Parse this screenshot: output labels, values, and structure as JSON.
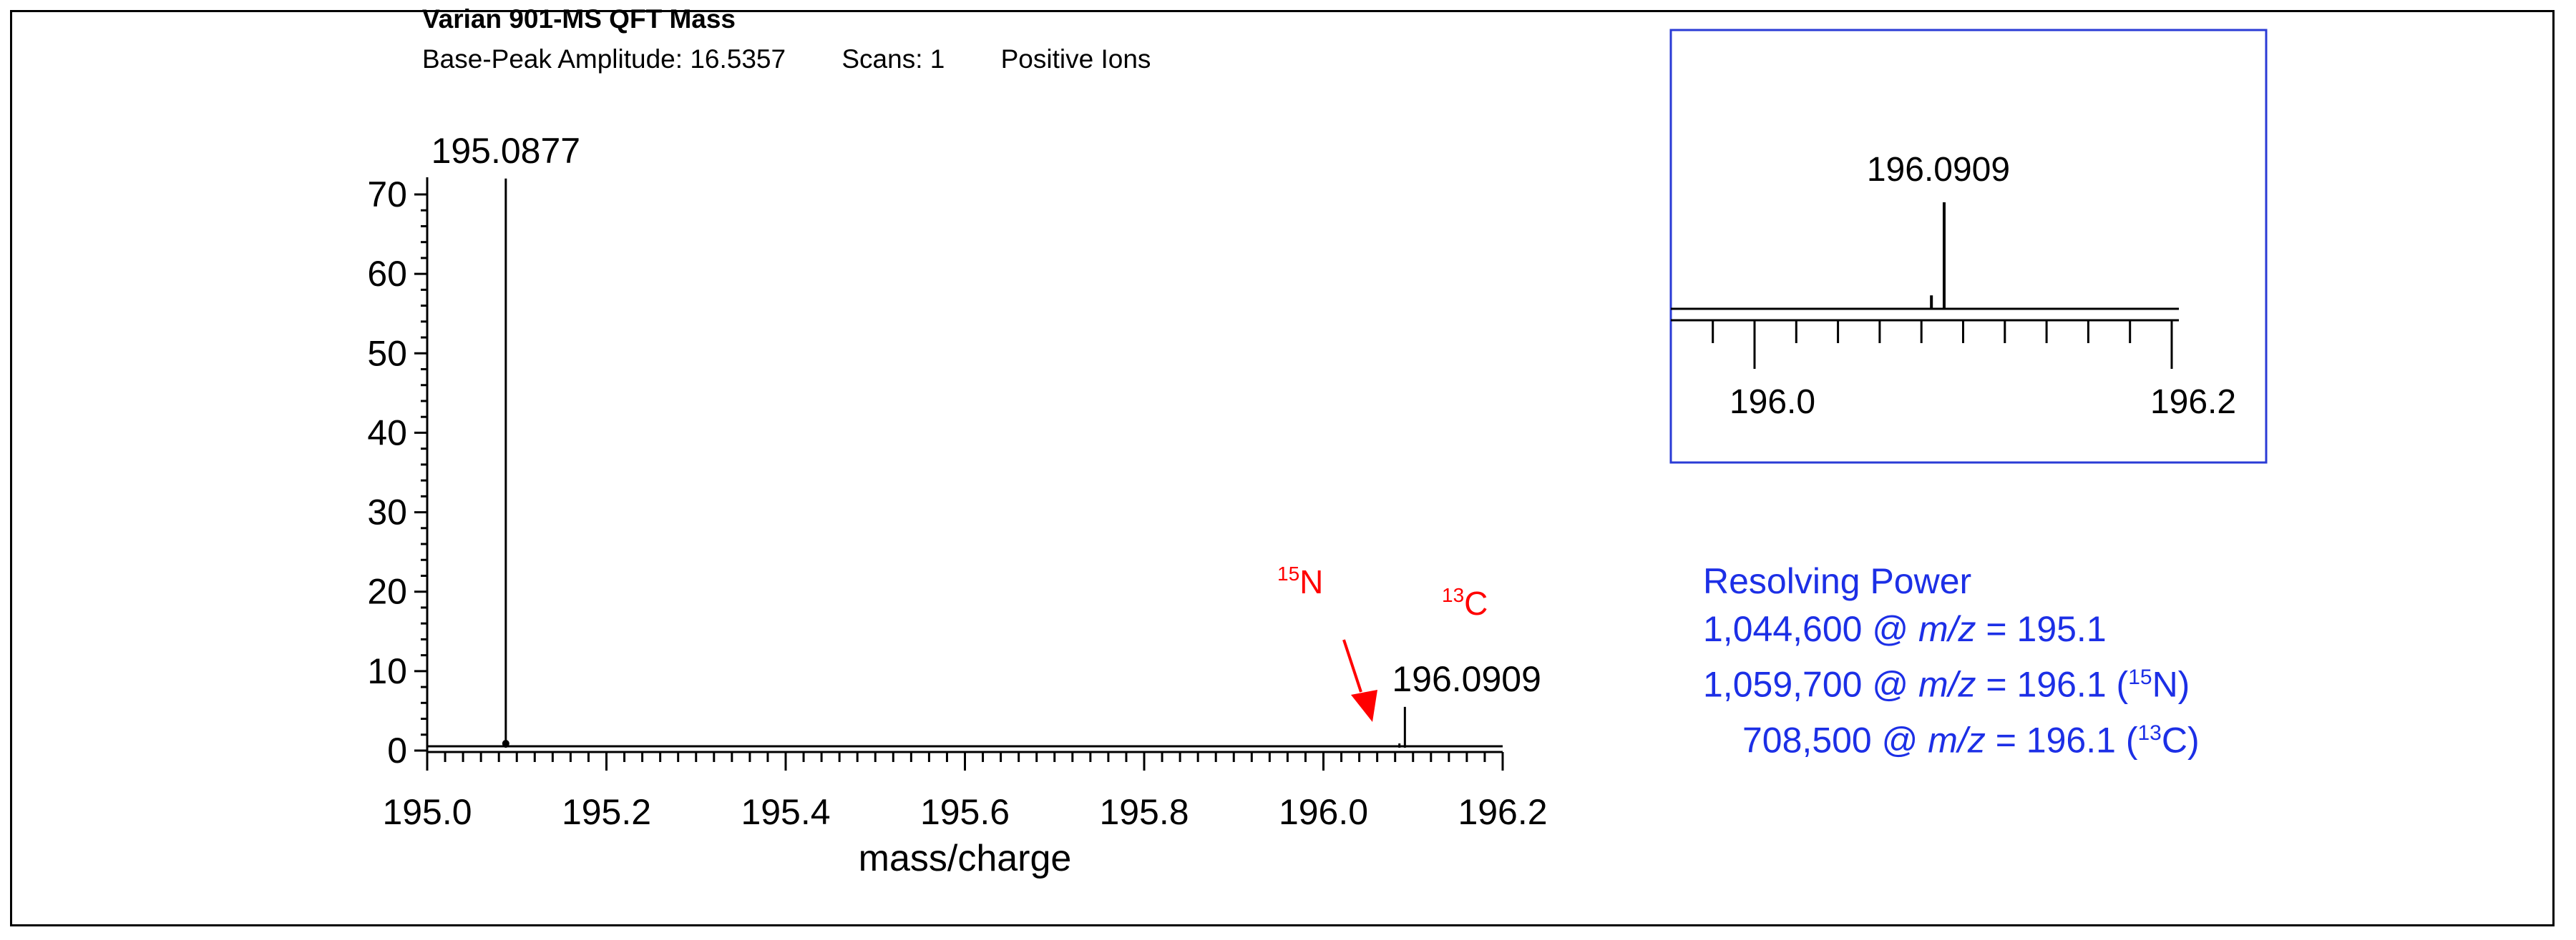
{
  "header": {
    "title": "Varian 901-MS QFT Mass",
    "amplitude": "Base-Peak Amplitude: 16.5357",
    "scans": "Scans: 1",
    "ion_mode": "Positive Ions"
  },
  "colors": {
    "axis": "#000000",
    "annotation": "#ff0000",
    "inset_border": "#2a3bd6",
    "resolving_text": "#1c2fe6"
  },
  "annotations": {
    "n15": "15N",
    "c13": "13C"
  },
  "resolving_power": {
    "title": "Resolving Power",
    "line1_value": "1,044,600 @ ",
    "line1_mz": "m/z",
    "line1_rest": " = 195.1",
    "line2_value": "1,059,700 @ ",
    "line2_mz": "m/z",
    "line2_rest": " = 196.1 (",
    "line2_iso_mass": "15",
    "line2_iso_el": "N)",
    "line3_value": "708,500 @ ",
    "line3_mz": "m/z",
    "line3_rest": " = 196.1 (",
    "line3_iso_mass": "13",
    "line3_iso_el": "C)"
  },
  "chart_data": [
    {
      "type": "line",
      "style": "stick spectrum",
      "xlabel": "mass/charge",
      "ylabel": "",
      "xlim": [
        195.0,
        196.2
      ],
      "ylim": [
        0,
        72
      ],
      "x_ticks": [
        195.0,
        195.2,
        195.4,
        195.6,
        195.8,
        196.0,
        196.2
      ],
      "x_tick_labels": [
        "195.0",
        "195.2",
        "195.4",
        "195.6",
        "195.8",
        "196.0",
        "196.2"
      ],
      "y_ticks": [
        0,
        10,
        20,
        30,
        40,
        50,
        60,
        70
      ],
      "y_tick_labels": [
        "0",
        "10",
        "20",
        "30",
        "40",
        "50",
        "60",
        "70"
      ],
      "peaks": [
        {
          "mz": 195.0877,
          "intensity": 72,
          "label": "195.0877"
        },
        {
          "mz": 196.0848,
          "intensity": 0.9,
          "label": ""
        },
        {
          "mz": 196.0909,
          "intensity": 5.5,
          "label": "196.0909"
        }
      ],
      "grid": false,
      "legend": "none"
    },
    {
      "type": "line",
      "style": "stick spectrum inset",
      "xlabel": "",
      "xlim": [
        195.98,
        196.2
      ],
      "x_tick_labels": [
        "196.0",
        "196.2"
      ],
      "peaks": [
        {
          "mz": 196.0848,
          "intensity": 8,
          "label": ""
        },
        {
          "mz": 196.0909,
          "intensity": 70,
          "label": "196.0909"
        }
      ]
    }
  ]
}
